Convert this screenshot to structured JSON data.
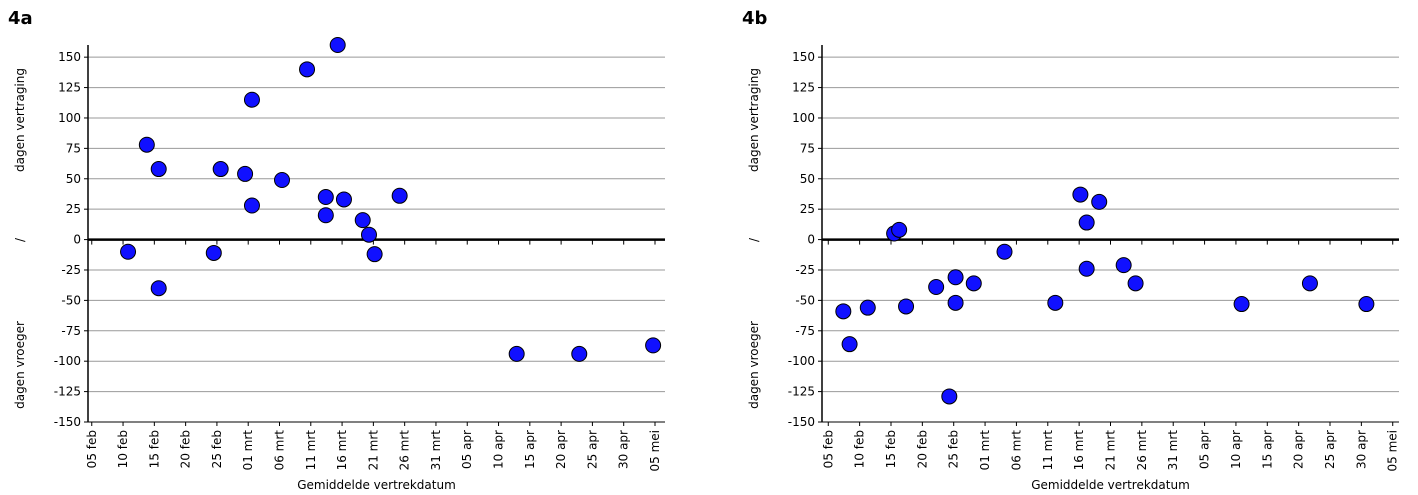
{
  "chart_data": [
    {
      "type": "scatter",
      "title": "4a",
      "ylabel": [
        "dagen vertraging",
        "/",
        "dagen vroeger"
      ],
      "xlabel": "Gemiddelde vertrekdatum",
      "series": [
        {
          "color": "#1010ff",
          "x": [
            41.8,
            44.8,
            46.7,
            46.7,
            55.5,
            56.6,
            60.5,
            61.6,
            61.6,
            66.4,
            70.4,
            73.4,
            73.4,
            75.3,
            76.3,
            79.3,
            80.3,
            81.2,
            85.2,
            103.9,
            113.9,
            125.7
          ],
          "values": [
            -10,
            78,
            58,
            -40,
            -11,
            58,
            54,
            115,
            28,
            49,
            140,
            35,
            20,
            160,
            33,
            16,
            4,
            -12,
            36,
            -94,
            -94,
            -87
          ]
        }
      ],
      "xlim": [
        35.4,
        127.6
      ],
      "xticks": [
        {
          "value": 36,
          "label": "05 feb"
        },
        {
          "value": 41,
          "label": "10 feb"
        },
        {
          "value": 46,
          "label": "15 feb"
        },
        {
          "value": 51,
          "label": "20 feb"
        },
        {
          "value": 56,
          "label": "25 feb"
        },
        {
          "value": 61,
          "label": "01 mrt"
        },
        {
          "value": 66,
          "label": "06 mrt"
        },
        {
          "value": 71,
          "label": "11 mrt"
        },
        {
          "value": 76,
          "label": "16 mrt"
        },
        {
          "value": 81,
          "label": "21 mrt"
        },
        {
          "value": 86,
          "label": "26 mrt"
        },
        {
          "value": 91,
          "label": "31 mrt"
        },
        {
          "value": 96,
          "label": "05 apr"
        },
        {
          "value": 101,
          "label": "10 apr"
        },
        {
          "value": 106,
          "label": "15 apr"
        },
        {
          "value": 111,
          "label": "20 apr"
        },
        {
          "value": 116,
          "label": "25 apr"
        },
        {
          "value": 121,
          "label": "30 apr"
        },
        {
          "value": 126,
          "label": "05 mei"
        }
      ],
      "ylim": [
        -150,
        160
      ],
      "yticks": [
        -150,
        -125,
        -100,
        -75,
        -50,
        -25,
        0,
        25,
        50,
        75,
        100,
        125,
        150
      ],
      "grid": true
    },
    {
      "type": "scatter",
      "title": "4b",
      "ylabel": [
        "dagen vertraging",
        "/",
        "dagen vroeger"
      ],
      "xlabel": "Gemiddelde vertrekdatum",
      "series": [
        {
          "color": "#1010ff",
          "x": [
            38.4,
            39.4,
            42.3,
            46.5,
            47.3,
            48.4,
            53.2,
            55.3,
            56.3,
            56.3,
            59.2,
            64.1,
            72.2,
            76.2,
            77.2,
            77.2,
            79.2,
            83.1,
            85.0,
            101.9,
            112.8,
            121.8
          ],
          "values": [
            -59,
            -86,
            -56,
            5,
            8,
            -55,
            -39,
            -129,
            -31,
            -52,
            -36,
            -10,
            -52,
            37,
            14,
            -24,
            31,
            -21,
            -36,
            -53,
            -36,
            -53
          ]
        }
      ],
      "xlim": [
        35.0,
        127.0
      ],
      "xticks": [
        {
          "value": 36,
          "label": "05 feb"
        },
        {
          "value": 41,
          "label": "10 feb"
        },
        {
          "value": 46,
          "label": "15 feb"
        },
        {
          "value": 51,
          "label": "20 feb"
        },
        {
          "value": 56,
          "label": "25 feb"
        },
        {
          "value": 61,
          "label": "01 mrt"
        },
        {
          "value": 66,
          "label": "06 mrt"
        },
        {
          "value": 71,
          "label": "11 mrt"
        },
        {
          "value": 76,
          "label": "16 mrt"
        },
        {
          "value": 81,
          "label": "21 mrt"
        },
        {
          "value": 86,
          "label": "26 mrt"
        },
        {
          "value": 91,
          "label": "31 mrt"
        },
        {
          "value": 96,
          "label": "05 apr"
        },
        {
          "value": 101,
          "label": "10 apr"
        },
        {
          "value": 106,
          "label": "15 apr"
        },
        {
          "value": 111,
          "label": "20 apr"
        },
        {
          "value": 116,
          "label": "25 apr"
        },
        {
          "value": 121,
          "label": "30 apr"
        },
        {
          "value": 126,
          "label": "05 mei"
        }
      ],
      "ylim": [
        -150,
        160
      ],
      "yticks": [
        -150,
        -125,
        -100,
        -75,
        -50,
        -25,
        0,
        25,
        50,
        75,
        100,
        125,
        150
      ],
      "grid": true
    }
  ]
}
